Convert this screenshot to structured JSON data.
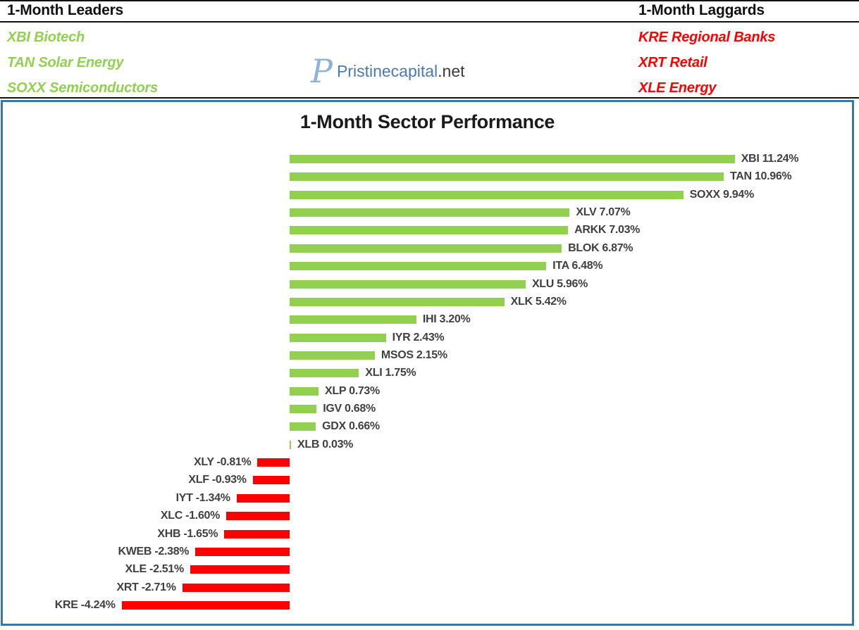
{
  "palette": {
    "green": "#92d050",
    "red": "#ff0000",
    "label_gray": "#404040",
    "chart_border": "#3b76a6",
    "rule_black": "#111111",
    "logo_monogram_blue": "#8fb3d8",
    "logo_name_blue": "#4d79ae",
    "logo_suffix_dark": "#3a3a3a"
  },
  "header": {
    "leaders_title": "1-Month Leaders",
    "laggards_title": "1-Month Laggards",
    "leaders": [
      "XBI Biotech",
      "TAN Solar Energy",
      "SOXX Semiconductors"
    ],
    "laggards": [
      "KRE Regional Banks",
      "XRT Retail",
      "XLE Energy"
    ]
  },
  "logo": {
    "monogram": "P",
    "name": "Pristinecapital",
    "suffix": ".net"
  },
  "chart_data": {
    "type": "bar",
    "orientation": "horizontal",
    "title": "1-Month Sector Performance",
    "value_suffix": "%",
    "positive_color": "#92d050",
    "negative_color": "#ff0000",
    "xlim": [
      -4.5,
      11.5
    ],
    "grid": false,
    "legend": false,
    "items": [
      {
        "ticker": "XBI",
        "value": 11.24
      },
      {
        "ticker": "TAN",
        "value": 10.96
      },
      {
        "ticker": "SOXX",
        "value": 9.94
      },
      {
        "ticker": "XLV",
        "value": 7.07
      },
      {
        "ticker": "ARKK",
        "value": 7.03
      },
      {
        "ticker": "BLOK",
        "value": 6.87
      },
      {
        "ticker": "ITA",
        "value": 6.48
      },
      {
        "ticker": "XLU",
        "value": 5.96
      },
      {
        "ticker": "XLK",
        "value": 5.42
      },
      {
        "ticker": "IHI",
        "value": 3.2
      },
      {
        "ticker": "IYR",
        "value": 2.43
      },
      {
        "ticker": "MSOS",
        "value": 2.15
      },
      {
        "ticker": "XLI",
        "value": 1.75
      },
      {
        "ticker": "XLP",
        "value": 0.73
      },
      {
        "ticker": "IGV",
        "value": 0.68
      },
      {
        "ticker": "GDX",
        "value": 0.66
      },
      {
        "ticker": "XLB",
        "value": 0.03
      },
      {
        "ticker": "XLY",
        "value": -0.81
      },
      {
        "ticker": "XLF",
        "value": -0.93
      },
      {
        "ticker": "IYT",
        "value": -1.34
      },
      {
        "ticker": "XLC",
        "value": -1.6
      },
      {
        "ticker": "XHB",
        "value": -1.65
      },
      {
        "ticker": "KWEB",
        "value": -2.38
      },
      {
        "ticker": "XLE",
        "value": -2.51
      },
      {
        "ticker": "XRT",
        "value": -2.71
      },
      {
        "ticker": "KRE",
        "value": -4.24
      }
    ]
  }
}
